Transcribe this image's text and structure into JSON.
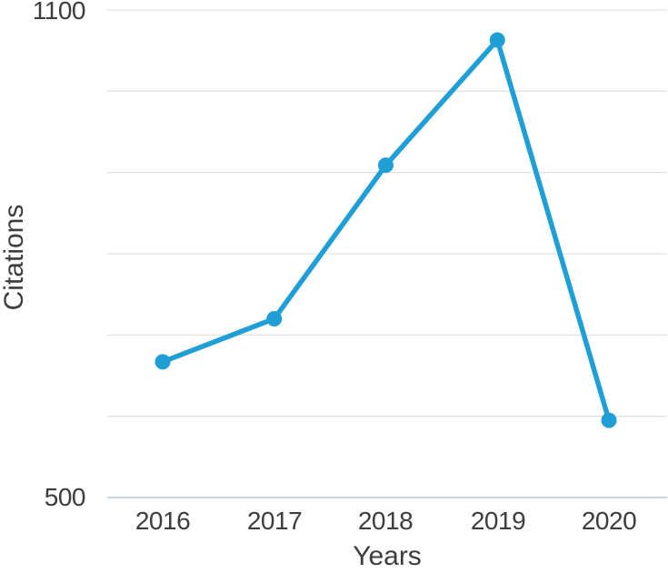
{
  "chart_data": {
    "type": "line",
    "title": "",
    "xlabel": "Years",
    "ylabel": "Citations",
    "categories": [
      "2016",
      "2017",
      "2018",
      "2019",
      "2020"
    ],
    "series": [
      {
        "name": "Citations",
        "values": [
          667,
          720,
          909,
          1063,
          595
        ]
      }
    ],
    "ylim": [
      500,
      1100
    ],
    "ytick_step": 100,
    "ytick_labels_shown": [
      "1100",
      "500"
    ],
    "grid": "horizontal-only",
    "legend": "none",
    "line_color": "#1f9fd6",
    "marker": "circle",
    "gridline_color": "#e2e2e2",
    "baseline_color": "#c7d4e6",
    "text_color": "#3d3d3d"
  }
}
